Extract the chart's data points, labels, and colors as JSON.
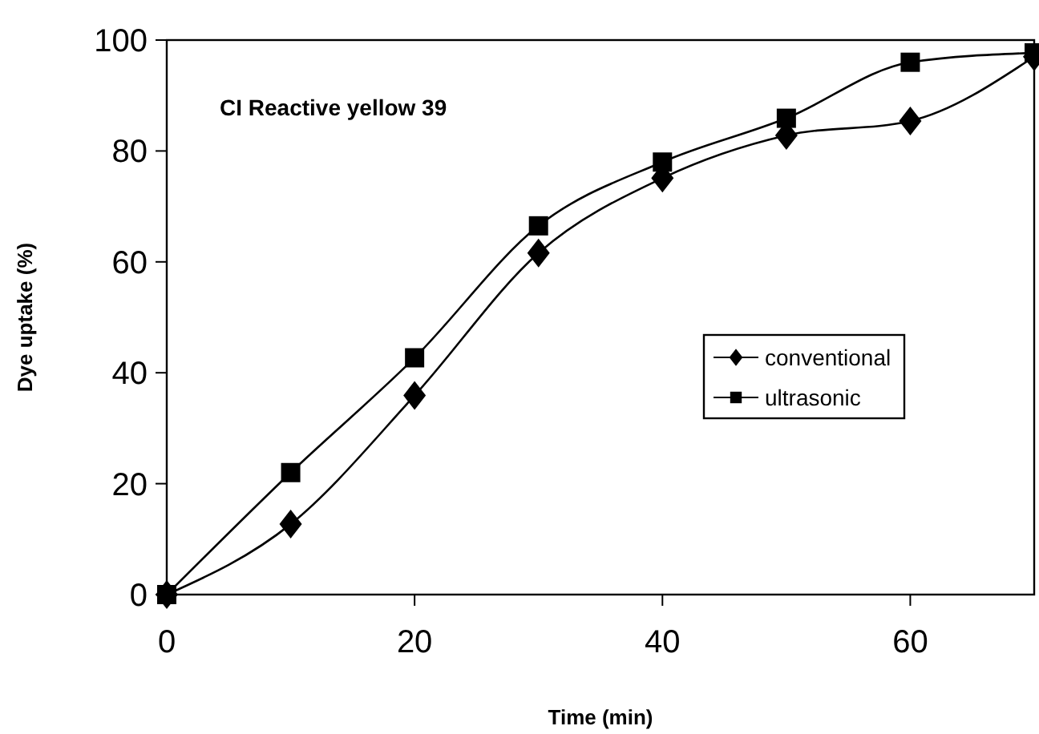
{
  "chart_data": {
    "type": "line",
    "title": "CI Reactive yellow 39",
    "xlabel": "Time (min)",
    "ylabel": "Dye uptake (%)",
    "x": [
      0,
      10,
      20,
      30,
      40,
      50,
      60,
      70
    ],
    "series": [
      {
        "name": "conventional",
        "color": "#000000",
        "marker": "diamond",
        "values": [
          0,
          12.7,
          35.9,
          61.6,
          75.1,
          82.8,
          85.4,
          97
        ]
      },
      {
        "name": "ultrasonic",
        "color": "#000000",
        "marker": "square",
        "values": [
          0,
          22,
          42.7,
          66.5,
          78,
          85.9,
          96,
          97.7
        ]
      }
    ],
    "xlim": [
      0,
      70
    ],
    "xticks": [
      0,
      20,
      40,
      60
    ],
    "ylim": [
      0,
      100
    ],
    "yticks": [
      0,
      20,
      40,
      60,
      80,
      100
    ],
    "grid": false,
    "legend": "right",
    "line_style": "solid"
  }
}
